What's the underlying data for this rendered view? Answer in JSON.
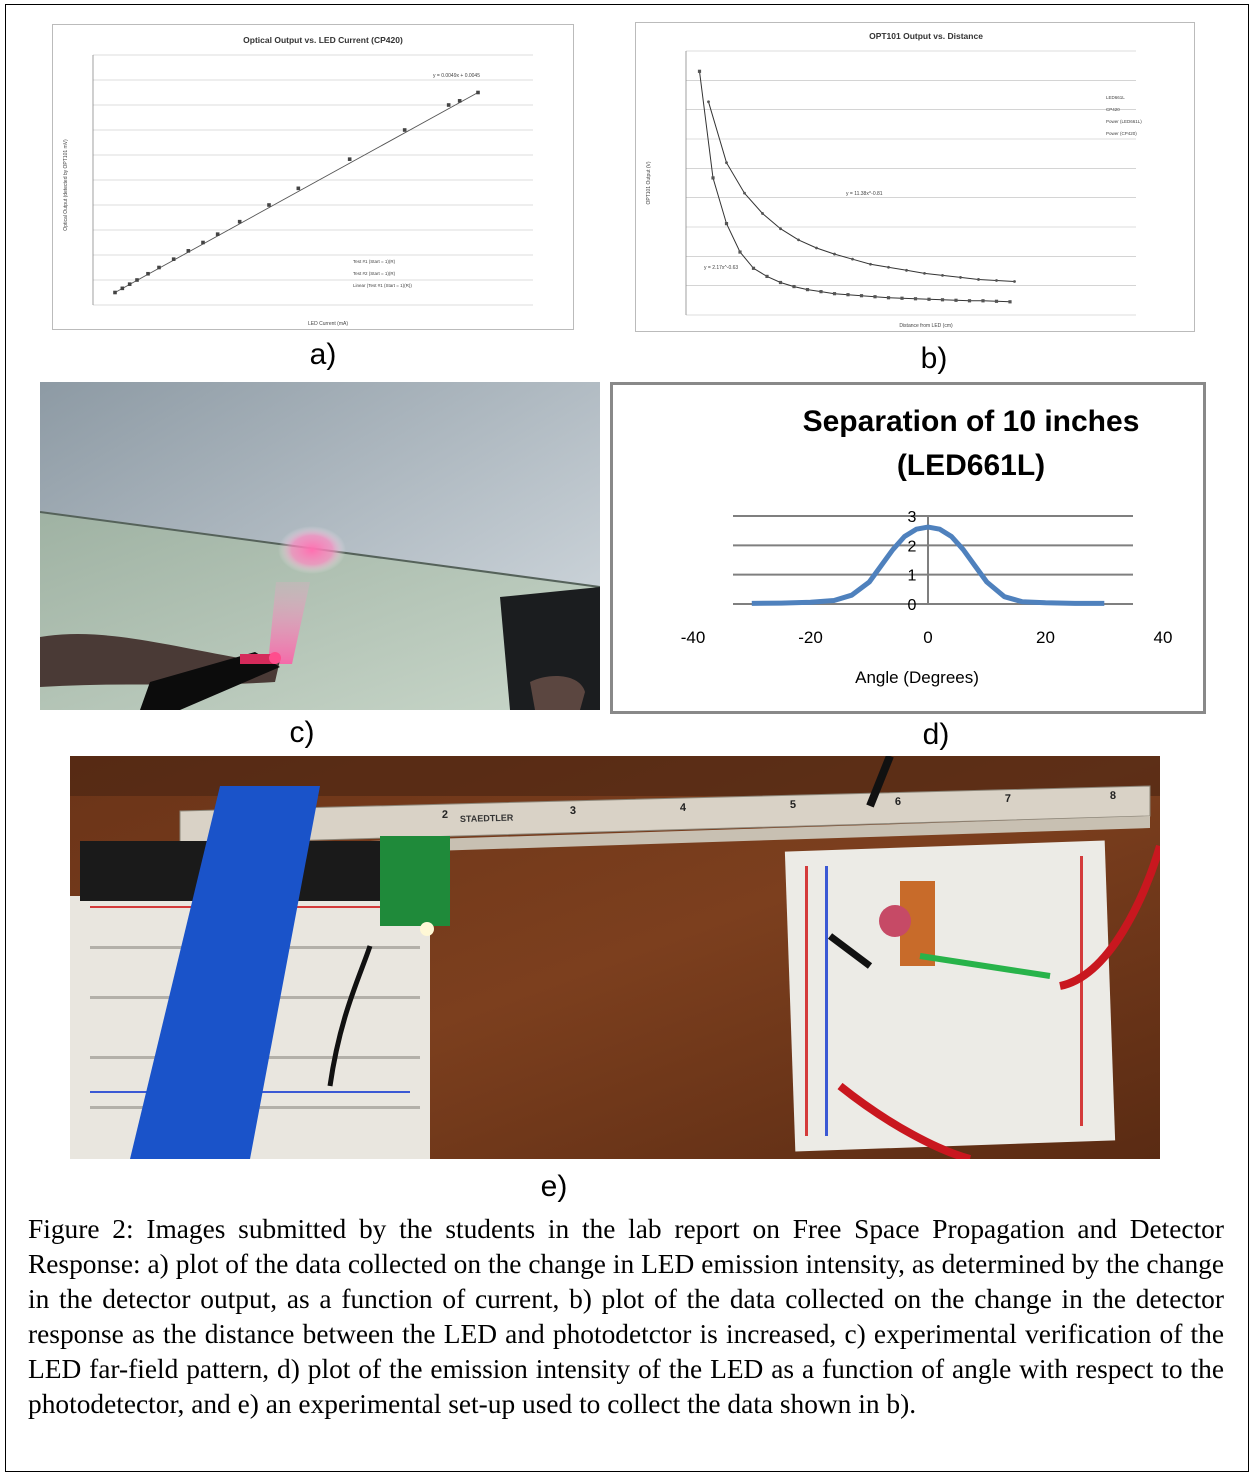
{
  "labels": {
    "a": "a)",
    "b": "b)",
    "c": "c)",
    "d": "d)",
    "e": "e)"
  },
  "chart_data": [
    {
      "type": "scatter",
      "title": "Optical Output vs. LED Current (CP420)",
      "xlabel": "LED Current (mA)",
      "ylabel": "Optical Output (detected by OPT101 mV)",
      "equation_label": "y = 0.0049x + 0.0045",
      "legend": [
        "Test #1 (Start = 1)(R)",
        "Test #2 (Start = 1)(R)",
        "Linear (Test #1 (Start = 1)(R))"
      ],
      "legend_position": "bottom-right",
      "grid": true,
      "x": [
        6,
        8,
        10,
        12,
        15,
        18,
        22,
        26,
        30,
        34,
        40,
        48,
        56,
        70,
        85,
        97,
        100,
        105
      ],
      "y": [
        0.03,
        0.04,
        0.05,
        0.06,
        0.075,
        0.09,
        0.11,
        0.13,
        0.15,
        0.17,
        0.2,
        0.24,
        0.28,
        0.35,
        0.42,
        0.48,
        0.49,
        0.51
      ]
    },
    {
      "type": "scatter",
      "title": "OPT101 Output vs. Distance",
      "xlabel": "Distance from LED (cm)",
      "ylabel": "OPT101 Output (V)",
      "legend": [
        "LED661L",
        "CP420",
        "Power (LED661L)",
        "Power (CP420)"
      ],
      "legend_position": "top-right",
      "equation_labels": [
        "y = 11.38x^-0.81",
        "y = 2.17x^-0.63"
      ],
      "grid": true,
      "series": [
        {
          "name": "LED661L",
          "x": [
            5,
            9,
            13,
            17,
            21,
            25,
            29,
            33,
            37,
            41,
            45,
            49,
            53,
            57,
            61,
            65,
            69,
            73
          ],
          "y": [
            2.1,
            1.5,
            1.2,
            1.0,
            0.85,
            0.74,
            0.66,
            0.6,
            0.55,
            0.5,
            0.47,
            0.44,
            0.41,
            0.39,
            0.37,
            0.35,
            0.34,
            0.33
          ]
        },
        {
          "name": "CP420",
          "x": [
            3,
            6,
            9,
            12,
            15,
            18,
            21,
            24,
            27,
            30,
            33,
            36,
            39,
            42,
            45,
            48,
            51,
            54,
            57,
            60,
            63,
            66,
            69,
            72
          ],
          "y": [
            2.4,
            1.35,
            0.9,
            0.62,
            0.46,
            0.38,
            0.32,
            0.28,
            0.25,
            0.23,
            0.21,
            0.2,
            0.19,
            0.18,
            0.17,
            0.165,
            0.16,
            0.155,
            0.15,
            0.145,
            0.14,
            0.14,
            0.135,
            0.13
          ]
        }
      ]
    },
    {
      "type": "area",
      "title": "Separation of 10 inches",
      "subtitle": "(LED661L)",
      "xlabel": "Angle (Degrees)",
      "ylabel": "",
      "xlim": [
        -40,
        40
      ],
      "ylim": [
        0,
        3
      ],
      "x_ticks": [
        "-40",
        "-20",
        "0",
        "20",
        "40"
      ],
      "y_ticks": [
        "0",
        "1",
        "2",
        "3"
      ],
      "color": "#4f81bd",
      "x": [
        -30,
        -25,
        -20,
        -16,
        -13,
        -10,
        -8,
        -6,
        -4,
        -2,
        0,
        2,
        4,
        6,
        8,
        10,
        13,
        16,
        20,
        25,
        30
      ],
      "y": [
        0.02,
        0.03,
        0.06,
        0.12,
        0.3,
        0.75,
        1.3,
        1.85,
        2.3,
        2.55,
        2.62,
        2.55,
        2.3,
        1.85,
        1.3,
        0.75,
        0.25,
        0.08,
        0.04,
        0.02,
        0.02
      ]
    }
  ],
  "photo_e": {
    "ruler_brand": "STAEDTLER",
    "ruler_numbers": [
      "2",
      "3",
      "4",
      "5",
      "6",
      "7",
      "8"
    ]
  },
  "caption": "Figure 2:  Images submitted by the students in the lab report on Free Space Propagation and Detector Response:  a) plot of the data collected on the change in LED emission intensity, as determined by the change in the detector output, as a function of current, b) plot of the data collected on the change in the detector response as the distance between the LED and photodetctor is increased, c) experimental verification of the LED far-field pattern, d) plot of the emission intensity of the LED as a function of angle with respect to the photodetector, and e) an experimental set-up used to collect the data shown in b)."
}
